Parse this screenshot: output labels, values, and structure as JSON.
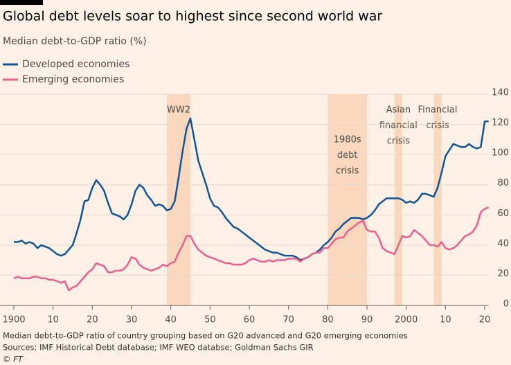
{
  "chart_data": {
    "type": "line",
    "title": "Global debt levels soar to highest since second world war",
    "subtitle": "Median debt-to-GDP ratio (%)",
    "footnote": "Median debt-to-GDP ratio of country grouping based on G20 advanced and G20 emerging economies",
    "source": "Sources: IMF Historical Debt database; IMF WEO databse; Goldman Sachs GIR",
    "credit": "© FT",
    "x": [
      1900,
      1901,
      1902,
      1903,
      1904,
      1905,
      1906,
      1907,
      1908,
      1909,
      1910,
      1911,
      1912,
      1913,
      1914,
      1915,
      1916,
      1917,
      1918,
      1919,
      1920,
      1921,
      1922,
      1923,
      1924,
      1925,
      1926,
      1927,
      1928,
      1929,
      1930,
      1931,
      1932,
      1933,
      1934,
      1935,
      1936,
      1937,
      1938,
      1939,
      1940,
      1941,
      1942,
      1943,
      1944,
      1945,
      1946,
      1947,
      1948,
      1949,
      1950,
      1951,
      1952,
      1953,
      1954,
      1955,
      1956,
      1957,
      1958,
      1959,
      1960,
      1961,
      1962,
      1963,
      1964,
      1965,
      1966,
      1967,
      1968,
      1969,
      1970,
      1971,
      1972,
      1973,
      1974,
      1975,
      1976,
      1977,
      1978,
      1979,
      1980,
      1981,
      1982,
      1983,
      1984,
      1985,
      1986,
      1987,
      1988,
      1989,
      1990,
      1991,
      1992,
      1993,
      1994,
      1995,
      1996,
      1997,
      1998,
      1999,
      2000,
      2001,
      2002,
      2003,
      2004,
      2005,
      2006,
      2007,
      2008,
      2009,
      2010,
      2011,
      2012,
      2013,
      2014,
      2015,
      2016,
      2017,
      2018,
      2019,
      2020,
      2021
    ],
    "series": [
      {
        "name": "Developed economies",
        "color": "#0f5499",
        "values": [
          42,
          42,
          43,
          41,
          42,
          41,
          38,
          40,
          39,
          38,
          36,
          34,
          33,
          34,
          37,
          40,
          48,
          57,
          69,
          70,
          78,
          83,
          80,
          76,
          68,
          61,
          60,
          59,
          57,
          60,
          67,
          76,
          80,
          78,
          73,
          70,
          66,
          67,
          66,
          63,
          64,
          69,
          85,
          102,
          117,
          124,
          110,
          96,
          88,
          80,
          71,
          66,
          65,
          62,
          58,
          55,
          52,
          51,
          49,
          47,
          45,
          43,
          41,
          39,
          37,
          36,
          35,
          35,
          34,
          33,
          33,
          33,
          32,
          30,
          31,
          32,
          34,
          35,
          37,
          40,
          42,
          45,
          49,
          51,
          54,
          56,
          58,
          58,
          58,
          57,
          58,
          60,
          63,
          67,
          69,
          71,
          71,
          71,
          71,
          70,
          68,
          69,
          68,
          70,
          74,
          74,
          73,
          72,
          78,
          88,
          99,
          103,
          107,
          106,
          105,
          105,
          107,
          105,
          104,
          105,
          122,
          122
        ]
      },
      {
        "name": "Emerging economies",
        "color": "#eb5e8d",
        "values": [
          18,
          19,
          18,
          18,
          18,
          19,
          19,
          18,
          18,
          17,
          17,
          16,
          15,
          16,
          10,
          12,
          13,
          16,
          19,
          22,
          24,
          28,
          27,
          26,
          22,
          22,
          23,
          23,
          24,
          27,
          32,
          31,
          27,
          25,
          24,
          23,
          24,
          25,
          27,
          26,
          28,
          29,
          35,
          40,
          46,
          46,
          41,
          37,
          35,
          33,
          32,
          31,
          30,
          29,
          28,
          28,
          27,
          27,
          27,
          28,
          30,
          31,
          30,
          29,
          29,
          30,
          29,
          30,
          30,
          30,
          31,
          31,
          31,
          29,
          31,
          32,
          34,
          35,
          35,
          38,
          38,
          41,
          44,
          45,
          45,
          49,
          51,
          53,
          55,
          56,
          50,
          49,
          49,
          45,
          38,
          36,
          35,
          34,
          40,
          46,
          45,
          46,
          50,
          48,
          46,
          43,
          40,
          40,
          39,
          42,
          38,
          37,
          38,
          40,
          43,
          46,
          47,
          49,
          53,
          62,
          64,
          65
        ]
      }
    ],
    "shaded_regions": [
      {
        "label": [
          "WW2"
        ],
        "start": 1939,
        "end": 1945
      },
      {
        "label": [
          "1980s",
          "debt",
          "crisis"
        ],
        "start": 1980,
        "end": 1990
      },
      {
        "label": [
          "Asian",
          "financial",
          "crisis"
        ],
        "start": 1997,
        "end": 1999
      },
      {
        "label": [
          "Financial",
          "crisis"
        ],
        "start": 2007,
        "end": 2009
      }
    ],
    "xlim": [
      1900,
      2021
    ],
    "xticks": [
      1900,
      {
        "value": 1910,
        "label": "10"
      },
      {
        "value": 1920,
        "label": "20"
      },
      {
        "value": 1930,
        "label": "30"
      },
      {
        "value": 1940,
        "label": "40"
      },
      {
        "value": 1950,
        "label": "50"
      },
      {
        "value": 1960,
        "label": "60"
      },
      {
        "value": 1970,
        "label": "70"
      },
      {
        "value": 1980,
        "label": "80"
      },
      {
        "value": 1990,
        "label": "90"
      },
      2000,
      {
        "value": 2010,
        "label": "10"
      },
      {
        "value": 2020,
        "label": "20"
      }
    ],
    "ylim": [
      0,
      140
    ],
    "yticks": [
      0,
      20,
      40,
      60,
      80,
      100,
      120,
      140
    ],
    "grid": true
  }
}
